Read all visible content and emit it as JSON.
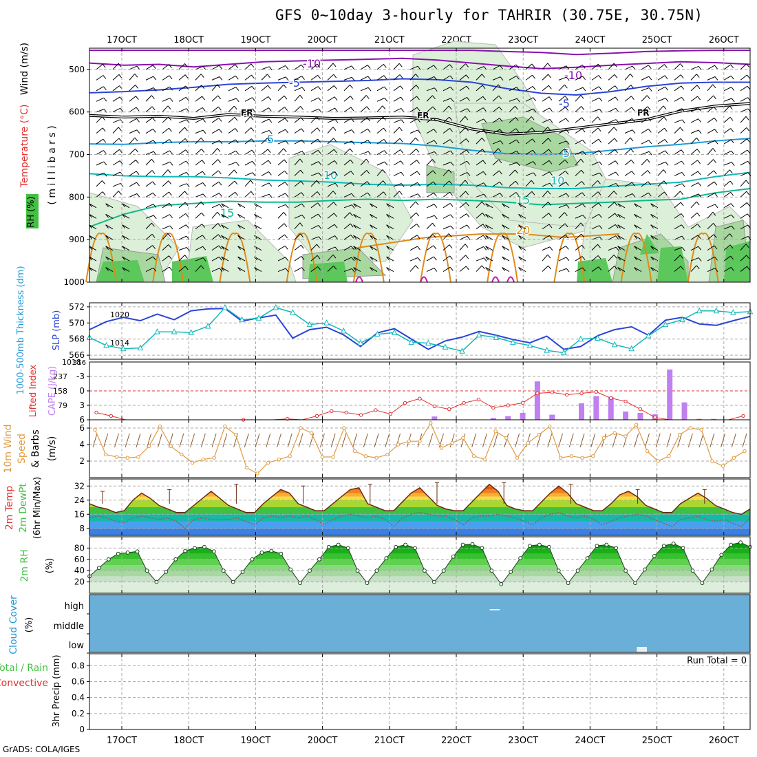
{
  "title": "GFS 0~10day 3-hourly for TAHRIR (30.75E, 30.75N)",
  "footer": "GrADS: COLA/IGES",
  "dates": [
    "17OCT",
    "18OCT",
    "19OCT",
    "20OCT",
    "21OCT",
    "22OCT",
    "23OCT",
    "24OCT",
    "25OCT",
    "26OCT"
  ],
  "colors": {
    "purple": "#8a10b0",
    "blue": "#2a44d8",
    "lightblue": "#1e9ad8",
    "cyan": "#14b8b8",
    "teal": "#10b88c",
    "orange": "#e08a18",
    "magenta": "#d010b0",
    "green": "#44c044",
    "cloud": "#6aafd8",
    "red": "#e03030",
    "cape": "#c080f0",
    "wind10": "#e09a40"
  },
  "chart_data": [
    {
      "type": "contour",
      "panel": "upper-air",
      "ylabel_parts": [
        "Wind (m/s)",
        "Temperature (°C)",
        "RH (%)"
      ],
      "ylabel_units": "( m i l l i b a r s )",
      "y_ticks": [
        "500",
        "600",
        "700",
        "800",
        "900",
        "1000"
      ],
      "ylim": [
        450,
        1000
      ],
      "freezing_label": "FR",
      "freezing_level": [
        608,
        612,
        610,
        615,
        606,
        610,
        612,
        615,
        614,
        612,
        618,
        640,
        652,
        648,
        638,
        628,
        618,
        598,
        586,
        580
      ],
      "isotherms": [
        {
          "label": "-10",
          "color": "purple",
          "levels": [
            485,
            490,
            488,
            494,
            488,
            482,
            480,
            478,
            476,
            474,
            478,
            485,
            492,
            498,
            495,
            490,
            486,
            482,
            484,
            488
          ]
        },
        {
          "label": "-10",
          "color": "purple",
          "levels": [
            455,
            455,
            455,
            455,
            455,
            455,
            455,
            455,
            455,
            455,
            455,
            455,
            458,
            460,
            465,
            462,
            458,
            456,
            455,
            455
          ]
        },
        {
          "label": "-5",
          "color": "blue",
          "levels": [
            555,
            552,
            548,
            542,
            535,
            532,
            530,
            528,
            526,
            522,
            524,
            530,
            545,
            556,
            560,
            552,
            540,
            532,
            530,
            530
          ]
        },
        {
          "label": "5",
          "color": "lightblue",
          "levels": [
            675,
            676,
            672,
            670,
            670,
            668,
            668,
            670,
            672,
            674,
            680,
            690,
            698,
            700,
            698,
            690,
            682,
            676,
            668,
            662
          ]
        },
        {
          "label": "10",
          "color": "cyan",
          "levels": [
            745,
            750,
            752,
            752,
            755,
            760,
            762,
            765,
            770,
            772,
            770,
            772,
            778,
            780,
            780,
            775,
            770,
            765,
            752,
            742
          ]
        },
        {
          "label": "15",
          "color": "teal",
          "levels": [
            870,
            840,
            820,
            815,
            810,
            812,
            812,
            808,
            805,
            808,
            805,
            808,
            812,
            818,
            815,
            812,
            808,
            805,
            790,
            780
          ]
        }
      ],
      "isotherm_labels": [
        "-10",
        "-10",
        "-5",
        "-5",
        "5",
        "5",
        "10",
        "10",
        "15",
        "15",
        "20"
      ]
    },
    {
      "type": "line",
      "panel": "thickness-slp",
      "ylabel_left": "1000-500mb Thickness (dm)",
      "ylabel_right": "SLP (mb)",
      "left_ticks": [
        "566",
        "568",
        "570",
        "572"
      ],
      "right_ticks": [
        "1014",
        "1020"
      ],
      "right_extra": "1018",
      "left_ylim": [
        565.5,
        572.5
      ],
      "right_ylim": [
        1010.5,
        1022.5
      ],
      "series": [
        {
          "name": "1000-500mb Thickness",
          "color": "cyan",
          "marker": "triangle",
          "values": [
            568.2,
            567.2,
            566.8,
            566.9,
            568.9,
            568.9,
            568.8,
            569.6,
            571.9,
            570.4,
            570.6,
            571.9,
            571.3,
            569.8,
            570.0,
            569.0,
            567.5,
            568.6,
            568.8,
            567.6,
            567.5,
            567.0,
            566.5,
            568.5,
            568.2,
            567.6,
            567.2,
            566.6,
            566.3,
            568.0,
            568.1,
            567.3,
            566.8,
            568.4,
            569.8,
            570.4,
            571.5,
            571.5,
            571.3,
            571.4
          ]
        },
        {
          "name": "SLP",
          "color": "blue",
          "marker": "none",
          "values": [
            1016.8,
            1018.5,
            1019.4,
            1018.7,
            1020.1,
            1018.9,
            1020.8,
            1021.2,
            1021.3,
            1018.6,
            1019.3,
            1019.9,
            1015.0,
            1016.8,
            1017.3,
            1015.7,
            1013.2,
            1016.1,
            1017.0,
            1014.8,
            1012.6,
            1014.4,
            1015.2,
            1016.4,
            1015.6,
            1014.7,
            1014.0,
            1015.4,
            1012.6,
            1013.2,
            1015.5,
            1016.8,
            1017.4,
            1015.6,
            1018.8,
            1019.4,
            1018.0,
            1017.7,
            1018.7,
            1019.6
          ]
        }
      ]
    },
    {
      "type": "bar+line",
      "panel": "lifted-index-cape",
      "ylabel_left": "Lifted Index",
      "ylabel_right": "CAPE (J/kg)",
      "left_ticks": [
        "-3",
        "0",
        "3",
        "6"
      ],
      "right_ticks": [
        "237",
        "158",
        "79"
      ],
      "right_extra": "316",
      "lifted_index": [
        4.5,
        5.2,
        6.5,
        6.8,
        6.5,
        6.8,
        6.5,
        6.3,
        7.0,
        6.8,
        6.0,
        6.4,
        6.8,
        5.8,
        6.6,
        5.2,
        4.2,
        4.5,
        5.0,
        4.0,
        4.8,
        2.5,
        1.6,
        3.2,
        3.8,
        2.5,
        1.8,
        3.5,
        3.0,
        2.5,
        0.5,
        0.3,
        0.8,
        0.5,
        0.2,
        1.5,
        2.2,
        3.8,
        5.5,
        6.5,
        7.0,
        6.8,
        7.0,
        6.8,
        5.2
      ],
      "lifted_index_range": [
        6,
        -6
      ],
      "cape": [
        0,
        0,
        0,
        0,
        0,
        0,
        0,
        0,
        0,
        0,
        0,
        0,
        0,
        0,
        0,
        0,
        0,
        0,
        0,
        0,
        0,
        0,
        0,
        18,
        0,
        0,
        0,
        10,
        20,
        38,
        210,
        28,
        0,
        90,
        130,
        125,
        45,
        38,
        30,
        275,
        95,
        5,
        5,
        0,
        0
      ],
      "cape_range": [
        0,
        316
      ]
    },
    {
      "type": "line",
      "panel": "wind10m",
      "ylabel_parts": [
        "10m Wind",
        "Speed",
        "& Barbs",
        "(m/s)"
      ],
      "y_ticks": [
        "2",
        "4",
        "6"
      ],
      "ylim": [
        0,
        7
      ],
      "values": [
        5.8,
        2.8,
        2.5,
        2.4,
        2.5,
        3.8,
        6.2,
        3.8,
        2.8,
        1.8,
        2.2,
        2.4,
        6.2,
        5.2,
        1.2,
        0.5,
        1.8,
        2.2,
        2.6,
        6.0,
        5.4,
        2.5,
        2.5,
        6.0,
        3.2,
        2.6,
        2.4,
        2.8,
        4.0,
        4.4,
        4.4,
        6.6,
        3.6,
        4.2,
        4.8,
        2.6,
        2.2,
        5.6,
        4.8,
        2.4,
        4.2,
        5.2,
        6.2,
        2.4,
        2.6,
        2.4,
        2.6,
        4.8,
        5.4,
        5.0,
        6.4,
        3.2,
        2.0,
        2.6,
        5.2,
        6.0,
        5.8,
        2.0,
        1.4,
        2.4,
        3.2
      ]
    },
    {
      "type": "area",
      "panel": "temp-dewpoint",
      "ylabel_parts": [
        "2m Temp",
        "2m DewPt",
        "(6hr Min/Max)"
      ],
      "y_ticks": [
        "8",
        "16",
        "24",
        "32"
      ],
      "ylim": [
        4,
        36
      ],
      "temperature": [
        22,
        20,
        19,
        17,
        18,
        24,
        28,
        25,
        21,
        19,
        17,
        17,
        21,
        25,
        29,
        25,
        21,
        19,
        17,
        17,
        22,
        26,
        30,
        28,
        22,
        20,
        18,
        18,
        22,
        26,
        30,
        31,
        22,
        20,
        18,
        18,
        23,
        28,
        31,
        26,
        21,
        19,
        18,
        18,
        23,
        28,
        33,
        29,
        21,
        19,
        18,
        18,
        23,
        28,
        32,
        28,
        22,
        20,
        18,
        18,
        22,
        27,
        29,
        26,
        21,
        19,
        17,
        17,
        22,
        25,
        28,
        25,
        21,
        19,
        17,
        16,
        19
      ],
      "dewpoint": [
        14,
        15,
        14,
        12,
        11,
        14,
        15,
        14,
        13,
        14,
        12,
        8,
        13,
        14,
        13,
        13,
        13,
        14,
        12,
        10,
        14,
        15,
        14,
        15,
        14,
        15,
        13,
        10,
        13,
        15,
        16,
        15,
        14,
        15,
        13,
        9,
        14,
        16,
        17,
        16,
        15,
        15,
        13,
        10,
        14,
        15,
        15,
        16,
        15,
        14,
        12,
        10,
        14,
        16,
        17,
        15,
        14,
        15,
        13,
        10,
        12,
        14,
        15,
        16,
        15,
        13,
        11,
        9,
        13,
        14,
        15,
        13,
        12,
        13,
        11,
        9,
        14
      ],
      "max_whiskers": [
        29,
        30,
        33,
        32,
        33,
        34,
        34,
        33,
        30,
        30
      ]
    },
    {
      "type": "area",
      "panel": "rh2m",
      "ylabel_parts": [
        "2m RH",
        "(%)"
      ],
      "y_ticks": [
        "20",
        "40",
        "60",
        "80"
      ],
      "ylim": [
        0,
        100
      ],
      "values": [
        30,
        45,
        60,
        70,
        72,
        74,
        40,
        20,
        38,
        60,
        75,
        80,
        82,
        74,
        40,
        20,
        38,
        60,
        72,
        75,
        70,
        42,
        18,
        40,
        60,
        82,
        86,
        80,
        40,
        18,
        40,
        62,
        82,
        86,
        80,
        40,
        20,
        40,
        65,
        86,
        87,
        80,
        40,
        16,
        38,
        62,
        84,
        86,
        82,
        40,
        18,
        40,
        62,
        84,
        86,
        80,
        40,
        18,
        42,
        66,
        84,
        88,
        80,
        40,
        18,
        42,
        68,
        86,
        90,
        82
      ]
    },
    {
      "type": "area",
      "panel": "cloud-cover",
      "ylabel_parts": [
        "Cloud Cover",
        "(%)"
      ],
      "y_ticks": [
        "high",
        "middle",
        "low"
      ],
      "marks": [
        {
          "level": "high",
          "start_day": 5.8,
          "end_day": 5.95
        },
        {
          "level": "low",
          "start_day": 8.0,
          "end_day": 8.15
        }
      ]
    },
    {
      "type": "bar",
      "panel": "precip",
      "ylabel_parts": [
        "Total / Rain",
        "Convective",
        "3hr Precip (mm)"
      ],
      "y_ticks": [
        "0",
        "0.2",
        "0.4",
        "0.6",
        "0.8"
      ],
      "ylim": [
        0,
        0.95
      ],
      "run_total": "Run Total = 0",
      "values": []
    }
  ]
}
